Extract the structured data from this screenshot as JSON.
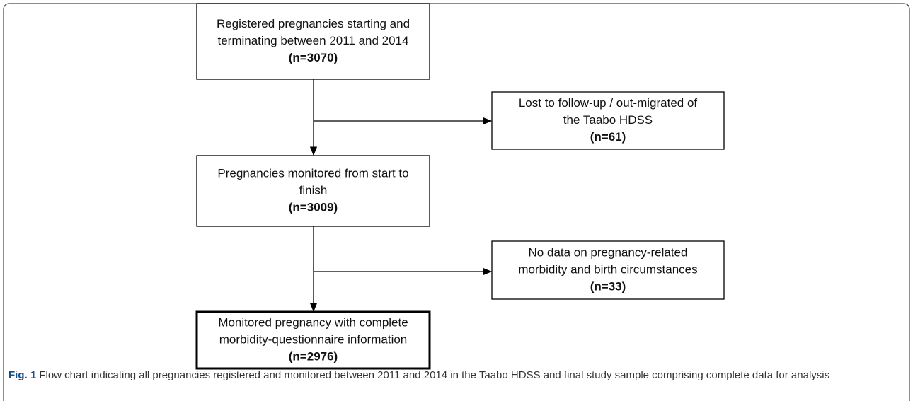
{
  "nodes": [
    {
      "lines": [
        "Registered pregnancies starting and",
        "terminating between 2011 and 2014"
      ],
      "count": "(n=3070)"
    },
    {
      "lines": [
        "Lost to follow-up / out-migrated of",
        "the Taabo HDSS"
      ],
      "count": "(n=61)"
    },
    {
      "lines": [
        "Pregnancies monitored from start to",
        "finish"
      ],
      "count": "(n=3009)"
    },
    {
      "lines": [
        "No data on pregnancy-related",
        "morbidity and birth circumstances"
      ],
      "count": "(n=33)"
    },
    {
      "lines": [
        "Monitored pregnancy with complete",
        "morbidity-questionnaire information"
      ],
      "count": "(n=2976)"
    }
  ],
  "caption": {
    "label": "Fig. 1",
    "text": "Flow chart indicating all pregnancies registered and monitored between 2011 and 2014 in the Taabo HDSS and final study sample comprising complete data for analysis"
  }
}
